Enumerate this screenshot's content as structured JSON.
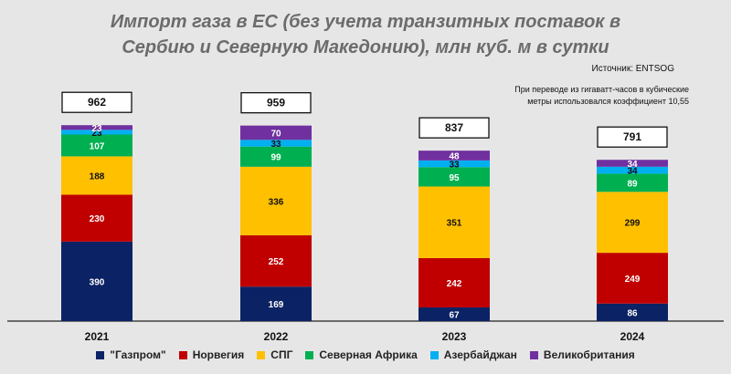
{
  "title_line1": "Импорт газа в ЕС (без учета транзитных поставок в",
  "title_line2": "Сербию и Северную Македонию), млн куб. м в сутки",
  "source": "Источник: ENTSOG",
  "note_line1": "При переводе из гигаватт-часов в кубические",
  "note_line2": "метры использовался коэффициент 10,55",
  "chart_data": {
    "type": "bar",
    "stacked": true,
    "categories": [
      "2021",
      "2022",
      "2023",
      "2024"
    ],
    "totals": [
      962,
      959,
      837,
      791
    ],
    "series": [
      {
        "name": "\"Газпром\"",
        "color": "#0b2264",
        "values": [
          390,
          169,
          67,
          86
        ]
      },
      {
        "name": "Норвегия",
        "color": "#c00000",
        "values": [
          230,
          252,
          242,
          249
        ]
      },
      {
        "name": "СПГ",
        "color": "#ffc000",
        "values": [
          188,
          336,
          351,
          299
        ]
      },
      {
        "name": "Северная Африка",
        "color": "#00b050",
        "values": [
          107,
          99,
          95,
          89
        ]
      },
      {
        "name": "Азербайджан",
        "color": "#00b0f0",
        "values": [
          23,
          33,
          33,
          34
        ]
      },
      {
        "name": "Великобритания",
        "color": "#7030a0",
        "values": [
          23,
          70,
          48,
          34
        ]
      }
    ],
    "legend_position": "bottom",
    "grid": false
  }
}
